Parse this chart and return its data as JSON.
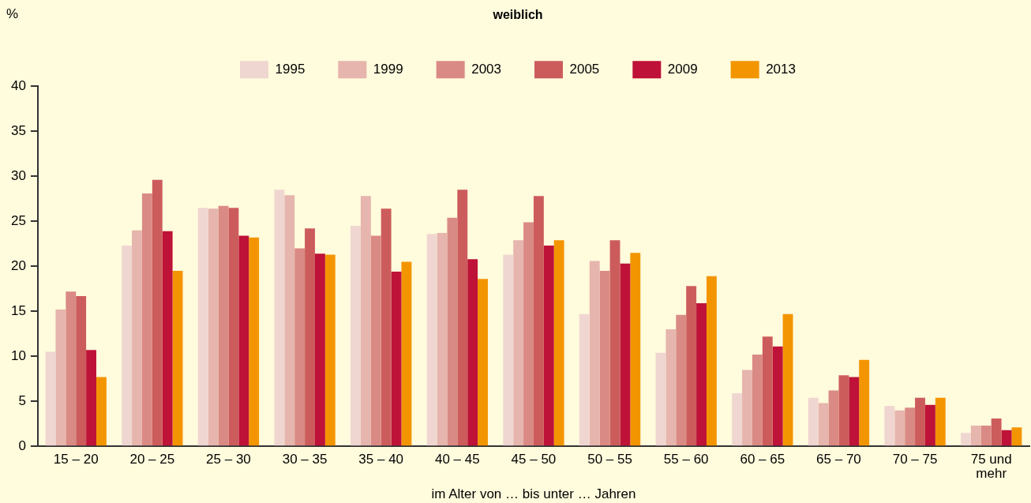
{
  "chart_data": {
    "type": "bar",
    "title": "weiblich",
    "ylabel": "%",
    "xlabel": "im Alter von … bis unter … Jahren",
    "categories": [
      "15 – 20",
      "20 – 25",
      "25 – 30",
      "30 – 35",
      "35 – 40",
      "40 – 45",
      "45 – 50",
      "50 – 55",
      "55 – 60",
      "60 – 65",
      "65 – 70",
      "70 – 75",
      "75 und mehr"
    ],
    "series": [
      {
        "name": "1995",
        "color": "#f0d6d0",
        "values": [
          10.5,
          22.3,
          26.5,
          28.5,
          24.5,
          23.6,
          21.3,
          14.7,
          10.4,
          5.9,
          5.4,
          4.5,
          1.5
        ]
      },
      {
        "name": "1999",
        "color": "#e6b5ad",
        "values": [
          15.2,
          24.0,
          26.4,
          27.9,
          27.8,
          23.7,
          22.9,
          20.6,
          13.0,
          8.5,
          4.8,
          4.0,
          2.3
        ]
      },
      {
        "name": "2003",
        "color": "#da8a84",
        "values": [
          17.2,
          28.1,
          26.7,
          22.0,
          23.4,
          25.4,
          24.9,
          19.5,
          14.6,
          10.2,
          6.2,
          4.3,
          2.3
        ]
      },
      {
        "name": "2005",
        "color": "#cc5c5c",
        "values": [
          16.7,
          29.6,
          26.5,
          24.2,
          26.4,
          28.5,
          27.8,
          22.9,
          17.8,
          12.2,
          7.9,
          5.4,
          3.1
        ]
      },
      {
        "name": "2009",
        "color": "#be1238",
        "values": [
          10.7,
          23.9,
          23.4,
          21.4,
          19.4,
          20.8,
          22.3,
          20.3,
          15.9,
          11.1,
          7.7,
          4.6,
          1.8
        ]
      },
      {
        "name": "2013",
        "color": "#f39500",
        "values": [
          7.7,
          19.5,
          23.2,
          21.3,
          20.5,
          18.6,
          22.9,
          21.5,
          18.9,
          14.7,
          9.6,
          5.4,
          2.1
        ]
      }
    ],
    "ylim": [
      0,
      40
    ],
    "yticks": [
      0,
      5,
      10,
      15,
      20,
      25,
      30,
      35,
      40
    ],
    "grid": false,
    "legend": "top"
  }
}
